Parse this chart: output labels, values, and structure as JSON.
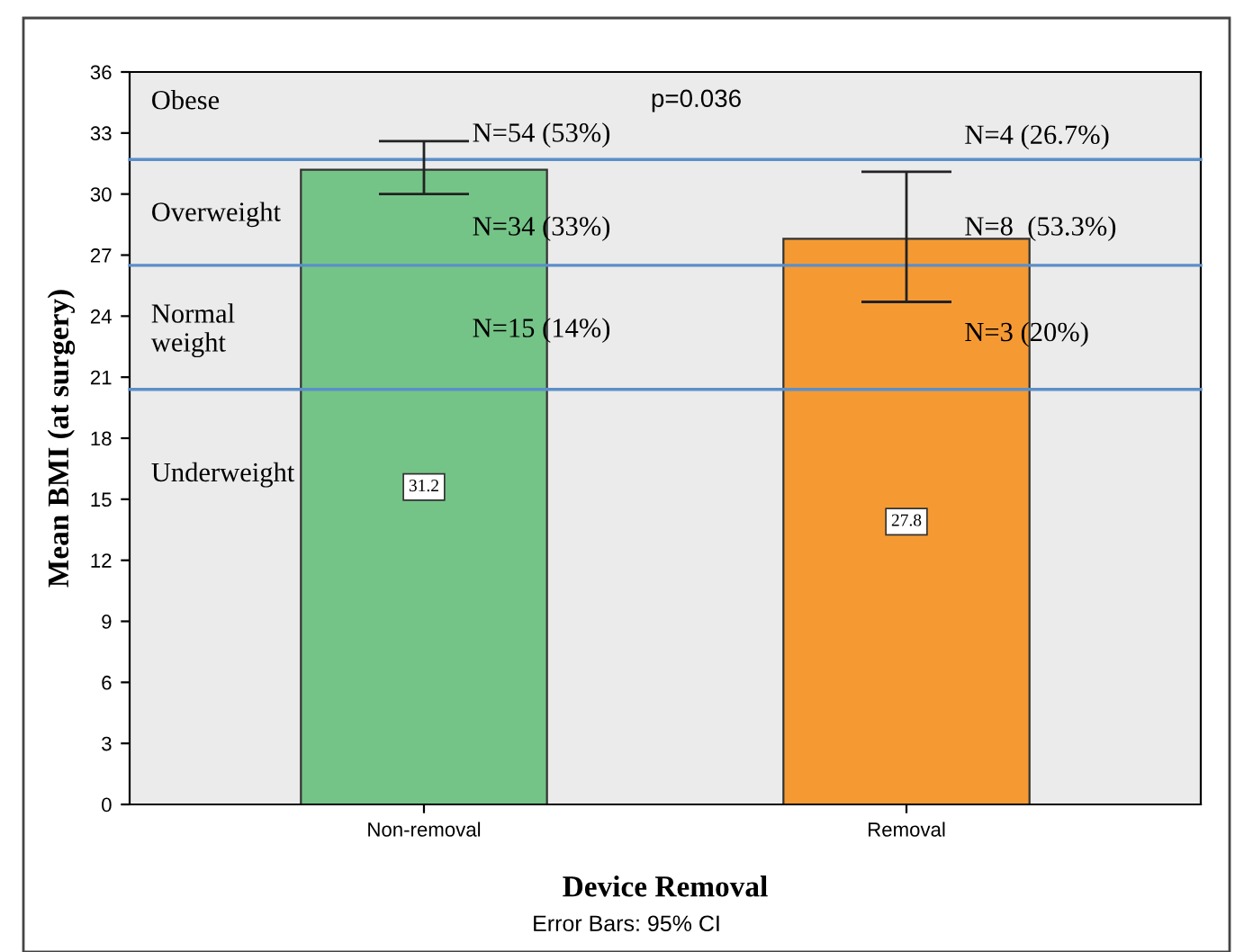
{
  "chart_data": {
    "type": "bar",
    "xlabel": "Device Removal",
    "ylabel": "Mean BMI (at surgery)",
    "categories": [
      "Non-removal",
      "Removal"
    ],
    "values": [
      31.2,
      27.8
    ],
    "colors": [
      "#74c487",
      "#f59a33"
    ],
    "errors": [
      [
        30.0,
        32.6
      ],
      [
        24.7,
        31.1
      ]
    ],
    "data_labels": true,
    "ylim": [
      0,
      36
    ],
    "yticks": [
      0,
      3,
      6,
      9,
      12,
      15,
      18,
      21,
      24,
      27,
      30,
      33,
      36
    ],
    "grid": false,
    "legend": false,
    "ref_lines": [
      {
        "axis": "y",
        "value": 31.7,
        "color": "#5b8fc9"
      },
      {
        "axis": "y",
        "value": 26.5,
        "color": "#5b8fc9"
      },
      {
        "axis": "y",
        "value": 20.4,
        "color": "#5b8fc9"
      }
    ],
    "annotations": [
      "Obese",
      "Overweight",
      "Normal\nweight",
      "Underweight",
      "p=0.036",
      "N=54 (53%)",
      "N=34 (33%)",
      "N=15 (14%)",
      "N=4 (26.7%)",
      "N=8  (53.3%)",
      "N=3 (20%)",
      "Error Bars: 95% CI"
    ]
  }
}
